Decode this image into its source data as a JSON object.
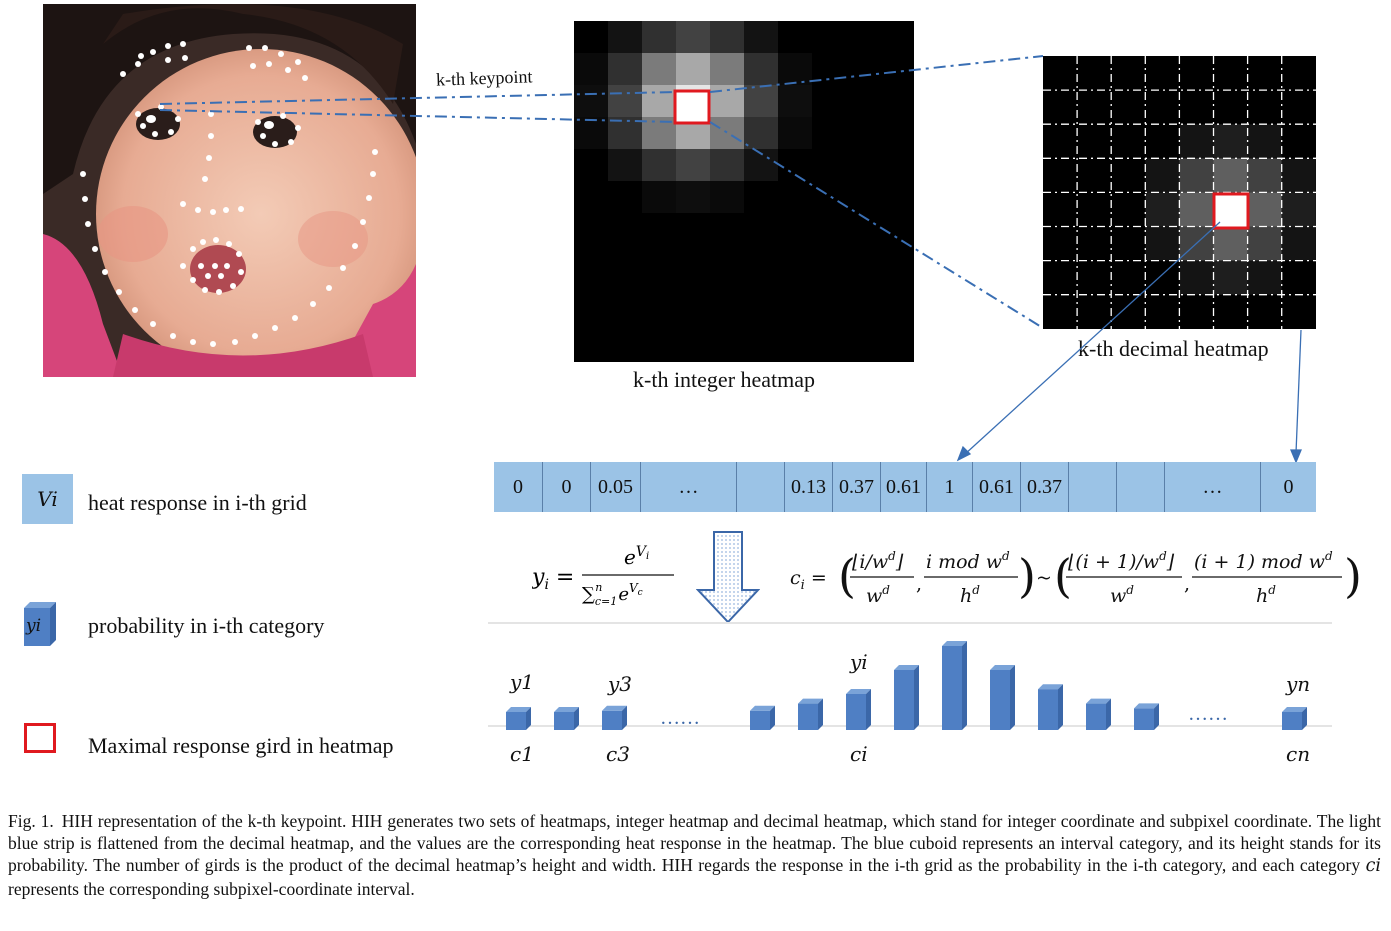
{
  "labels": {
    "keypoint": "k-th keypoint",
    "integer_heatmap": "k-th integer heatmap",
    "decimal_heatmap": "k-th decimal heatmap"
  },
  "strip": [
    "0",
    "0",
    "0.05",
    "…",
    "",
    "0.13",
    "0.37",
    "0.61",
    "1",
    "0.61",
    "0.37",
    "",
    "",
    "…",
    "0"
  ],
  "legend": {
    "heat_symbol": "Vi",
    "heat_text": "heat response in i-th grid",
    "prob_symbol": "yi",
    "prob_text": "probability in i-th category",
    "max_text": "Maximal response gird in heatmap"
  },
  "equations": {
    "softmax_lhs": "yi =",
    "softmax_num": "e^Vi",
    "softmax_den": "∑ c=1..n e^Vc",
    "interval": "ci = ( ⌊i/wᵈ⌋/wᵈ , i mod wᵈ / hᵈ ) ~ ( ⌊(i+1)/wᵈ⌋/wᵈ , (i+1) mod wᵈ / hᵈ )"
  },
  "bars": {
    "top_labels": [
      "y1",
      "y3",
      "yi",
      "yn"
    ],
    "bottom_labels": [
      "c1",
      "c3",
      "ci",
      "cn"
    ],
    "ellipsis": "……",
    "heights": [
      0.12,
      0.14,
      0.16,
      0.16,
      0.22,
      0.3,
      0.5,
      0.7,
      0.5,
      0.34,
      0.22,
      0.18,
      0.14
    ],
    "color": "#4f7fc4"
  },
  "caption": {
    "fignum": "Fig. 1.",
    "text": "HIH representation of the k-th keypoint. HIH generates two sets of heatmaps, integer heatmap and decimal heatmap, which stand for integer coordinate and subpixel coordinate. The light blue strip is flattened from the decimal heatmap, and the values are the corresponding heat response in the heatmap. The blue cuboid represents an interval category, and its height stands for its probability. The number of girds is the product of the decimal heatmap’s height and width. HIH regards the response in the i-th grid as the probability in the i-th category, and each category ",
    "ci": "ci",
    "text_end": " represents the corresponding subpixel-coordinate interval."
  },
  "colors": {
    "strip": "#9bc3e6",
    "max_box": "#e0191f",
    "dash_line": "#3a6fb4"
  }
}
